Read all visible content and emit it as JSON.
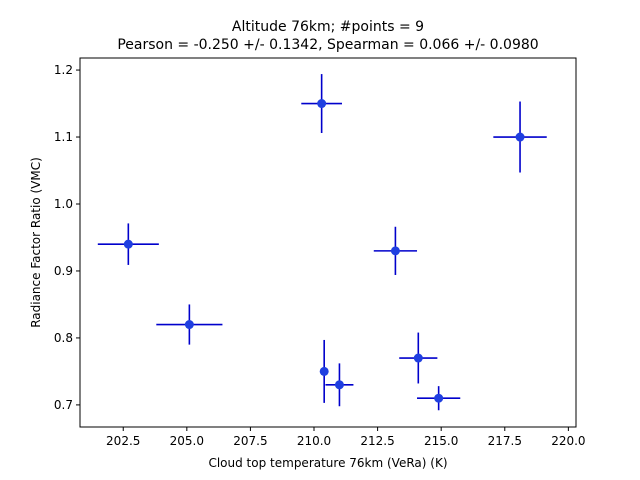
{
  "chart_data": {
    "type": "scatter",
    "title_line1": "Altitude 76km;  #points =  9",
    "title_line2": "Pearson = -0.250 +/-  0.1342, Spearman =  0.066 +/-  0.0980",
    "xlabel": "Cloud top temperature 76km (VeRa) (K)",
    "ylabel": "Radiance Factor Ratio (VMC)",
    "xlim": [
      200.8,
      220.3
    ],
    "ylim": [
      0.667,
      1.218
    ],
    "xticks": [
      202.5,
      205.0,
      207.5,
      210.0,
      212.5,
      215.0,
      217.5,
      220.0
    ],
    "xtick_labels": [
      "202.5",
      "205.0",
      "207.5",
      "210.0",
      "212.5",
      "215.0",
      "217.5",
      "220.0"
    ],
    "yticks": [
      0.7,
      0.8,
      0.9,
      1.0,
      1.1,
      1.2
    ],
    "ytick_labels": [
      "0.7",
      "0.8",
      "0.9",
      "1.0",
      "1.1",
      "1.2"
    ],
    "grid": false,
    "colors": {
      "point": "#1f3fe0",
      "errorbar": "#0000cc"
    },
    "points": [
      {
        "x": 202.7,
        "y": 0.94,
        "xerr": 1.2,
        "yerr": 0.031
      },
      {
        "x": 205.1,
        "y": 0.82,
        "xerr": 1.3,
        "yerr": 0.03
      },
      {
        "x": 210.3,
        "y": 1.15,
        "xerr": 0.8,
        "yerr": 0.044
      },
      {
        "x": 210.4,
        "y": 0.75,
        "xerr": 0.15,
        "yerr": 0.047
      },
      {
        "x": 211.0,
        "y": 0.73,
        "xerr": 0.55,
        "yerr": 0.032
      },
      {
        "x": 213.2,
        "y": 0.93,
        "xerr": 0.85,
        "yerr": 0.036
      },
      {
        "x": 214.1,
        "y": 0.77,
        "xerr": 0.75,
        "yerr": 0.038
      },
      {
        "x": 214.9,
        "y": 0.71,
        "xerr": 0.85,
        "yerr": 0.018
      },
      {
        "x": 218.1,
        "y": 1.1,
        "xerr": 1.05,
        "yerr": 0.053
      }
    ]
  }
}
